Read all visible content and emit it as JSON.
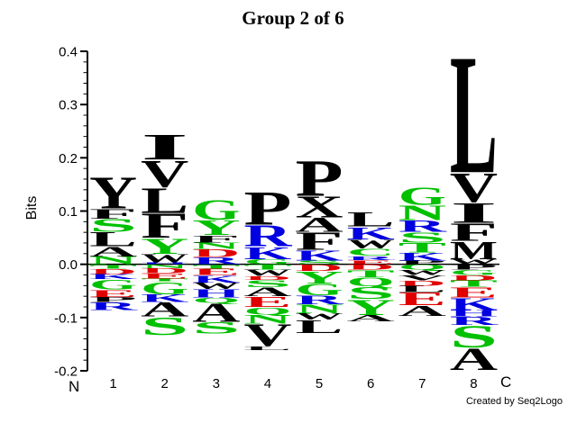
{
  "chart_data": {
    "type": "sequence_logo",
    "title": "Group 2 of 6",
    "ylabel": "Bits",
    "end_labels": {
      "left": "N",
      "right": "C"
    },
    "credit": "Created by Seq2Logo",
    "ylim": [
      -0.2,
      0.4
    ],
    "yticks": [
      {
        "label": "0.4",
        "value": 0.4
      },
      {
        "label": "0.3",
        "value": 0.3
      },
      {
        "label": "0.2",
        "value": 0.2
      },
      {
        "label": "0.1",
        "value": 0.1
      },
      {
        "label": "0.0",
        "value": 0.0
      },
      {
        "label": "-0.1",
        "value": -0.1
      },
      {
        "label": "-0.2",
        "value": -0.2
      }
    ],
    "minor_tick_step": 0.02,
    "colors": {
      "black": "#000000",
      "green": "#00c000",
      "blue": "#0000e0",
      "red": "#e00000"
    },
    "positions": [
      {
        "pos": "1",
        "above": [
          [
            "Y",
            0.061,
            "black"
          ],
          [
            "F",
            0.019,
            "black"
          ],
          [
            "S",
            0.025,
            "green"
          ],
          [
            "L",
            0.027,
            "black"
          ],
          [
            "A",
            0.019,
            "black"
          ],
          [
            "N",
            0.015,
            "green"
          ]
        ],
        "below": [
          [
            "T",
            0.008,
            "green"
          ],
          [
            "D",
            0.01,
            "red"
          ],
          [
            "K",
            0.01,
            "blue"
          ],
          [
            "G",
            0.019,
            "green"
          ],
          [
            "E",
            0.014,
            "red"
          ],
          [
            "P",
            0.01,
            "black"
          ],
          [
            "R",
            0.015,
            "blue"
          ]
        ]
      },
      {
        "pos": "2",
        "above": [
          [
            "I",
            0.049,
            "black"
          ],
          [
            "V",
            0.051,
            "black"
          ],
          [
            "L",
            0.049,
            "black"
          ],
          [
            "F",
            0.047,
            "black"
          ],
          [
            "Y",
            0.03,
            "green"
          ],
          [
            "W",
            0.017,
            "black"
          ],
          [
            "H",
            0.003,
            "blue"
          ]
        ],
        "below": [
          [
            "N",
            0.007,
            "green"
          ],
          [
            "D",
            0.01,
            "red"
          ],
          [
            "E",
            0.01,
            "red"
          ],
          [
            "T",
            0.005,
            "green"
          ],
          [
            "G",
            0.024,
            "green"
          ],
          [
            "K",
            0.015,
            "blue"
          ],
          [
            "A",
            0.027,
            "black"
          ],
          [
            "S",
            0.034,
            "green"
          ]
        ]
      },
      {
        "pos": "3",
        "above": [
          [
            "G",
            0.039,
            "green"
          ],
          [
            "Y",
            0.029,
            "green"
          ],
          [
            "F",
            0.014,
            "black"
          ],
          [
            "N",
            0.012,
            "green"
          ],
          [
            "D",
            0.015,
            "red"
          ],
          [
            "R",
            0.014,
            "blue"
          ]
        ],
        "below": [
          [
            "T",
            0.008,
            "green"
          ],
          [
            "E",
            0.012,
            "red"
          ],
          [
            "K",
            0.014,
            "blue"
          ],
          [
            "W",
            0.012,
            "black"
          ],
          [
            "H",
            0.016,
            "blue"
          ],
          [
            "Q",
            0.01,
            "green"
          ],
          [
            "A",
            0.036,
            "black"
          ],
          [
            "S",
            0.022,
            "green"
          ]
        ]
      },
      {
        "pos": "4",
        "above": [
          [
            "P",
            0.064,
            "black"
          ],
          [
            "R",
            0.041,
            "blue"
          ],
          [
            "K",
            0.024,
            "blue"
          ],
          [
            "G",
            0.01,
            "green"
          ]
        ],
        "below": [
          [
            "T",
            0.01,
            "green"
          ],
          [
            "W",
            0.012,
            "black"
          ],
          [
            "D",
            0.007,
            "red"
          ],
          [
            "S",
            0.014,
            "green"
          ],
          [
            "A",
            0.017,
            "black"
          ],
          [
            "E",
            0.02,
            "red"
          ],
          [
            "Q",
            0.014,
            "green"
          ],
          [
            "N",
            0.017,
            "green"
          ],
          [
            "V",
            0.042,
            "black"
          ],
          [
            "L",
            0.008,
            "black"
          ]
        ]
      },
      {
        "pos": "5",
        "above": [
          [
            "P",
            0.069,
            "black"
          ],
          [
            "X",
            0.041,
            "black"
          ],
          [
            "A",
            0.027,
            "black"
          ],
          [
            "F",
            0.034,
            "black"
          ],
          [
            "K",
            0.02,
            "blue"
          ],
          [
            "S",
            0.007,
            "green"
          ]
        ],
        "below": [
          [
            "D",
            0.012,
            "red"
          ],
          [
            "Y",
            0.024,
            "green"
          ],
          [
            "G",
            0.022,
            "green"
          ],
          [
            "R",
            0.017,
            "blue"
          ],
          [
            "N",
            0.017,
            "green"
          ],
          [
            "W",
            0.012,
            "black"
          ],
          [
            "L",
            0.025,
            "black"
          ]
        ]
      },
      {
        "pos": "6",
        "above": [
          [
            "L",
            0.027,
            "black"
          ],
          [
            "K",
            0.024,
            "blue"
          ],
          [
            "W",
            0.017,
            "black"
          ],
          [
            "C",
            0.014,
            "green"
          ],
          [
            "R",
            0.008,
            "blue"
          ],
          [
            "E",
            0.008,
            "red"
          ]
        ],
        "below": [
          [
            "D",
            0.01,
            "red"
          ],
          [
            "T",
            0.014,
            "green"
          ],
          [
            "Q",
            0.017,
            "green"
          ],
          [
            "S",
            0.024,
            "green"
          ],
          [
            "Y",
            0.03,
            "green"
          ],
          [
            "A",
            0.012,
            "black"
          ]
        ]
      },
      {
        "pos": "7",
        "above": [
          [
            "G",
            0.034,
            "green"
          ],
          [
            "N",
            0.029,
            "green"
          ],
          [
            "R",
            0.022,
            "blue"
          ],
          [
            "S",
            0.02,
            "green"
          ],
          [
            "T",
            0.019,
            "green"
          ],
          [
            "K",
            0.015,
            "blue"
          ],
          [
            "P",
            0.007,
            "black"
          ]
        ],
        "below": [
          [
            "Q",
            0.01,
            "green"
          ],
          [
            "W",
            0.01,
            "black"
          ],
          [
            "V",
            0.01,
            "black"
          ],
          [
            "D",
            0.01,
            "red"
          ],
          [
            "L",
            0.012,
            "black"
          ],
          [
            "E",
            0.025,
            "red"
          ],
          [
            "A",
            0.02,
            "black"
          ]
        ]
      },
      {
        "pos": "8",
        "above": [
          [
            "L",
            0.227,
            "black"
          ],
          [
            "V",
            0.056,
            "black"
          ],
          [
            "I",
            0.039,
            "black"
          ],
          [
            "F",
            0.034,
            "black"
          ],
          [
            "M",
            0.034,
            "black"
          ],
          [
            "W",
            0.01,
            "black"
          ]
        ],
        "below": [
          [
            "P",
            0.01,
            "black"
          ],
          [
            "G",
            0.01,
            "green"
          ],
          [
            "D",
            0.01,
            "red"
          ],
          [
            "T",
            0.012,
            "green"
          ],
          [
            "E",
            0.02,
            "red"
          ],
          [
            "K",
            0.024,
            "blue"
          ],
          [
            "H",
            0.012,
            "blue"
          ],
          [
            "R",
            0.016,
            "blue"
          ],
          [
            "S",
            0.042,
            "green"
          ],
          [
            "A",
            0.042,
            "black"
          ]
        ]
      }
    ]
  }
}
